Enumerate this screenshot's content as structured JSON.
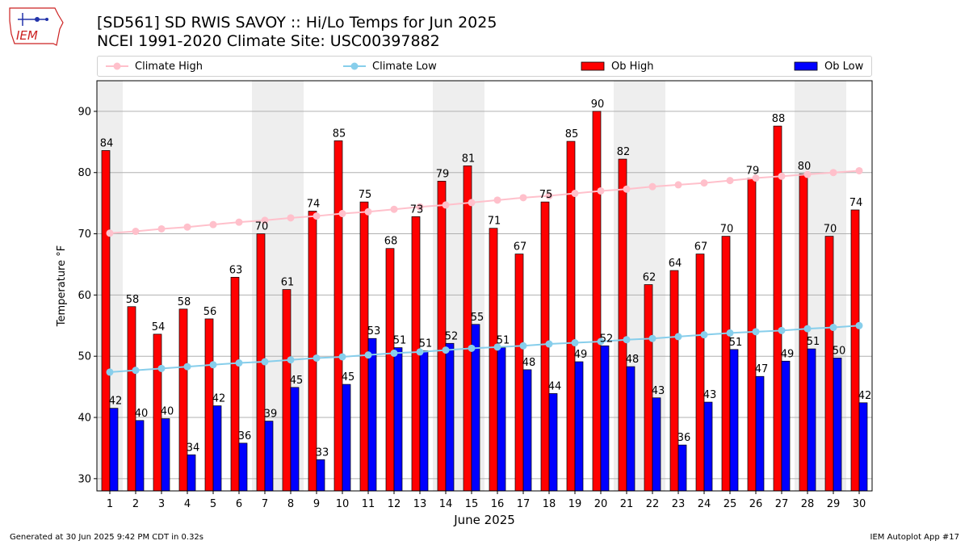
{
  "logo": {
    "text": "IEM",
    "icon": "iowa-state-outline-logo-icon"
  },
  "title": {
    "line1": "[SD561] SD RWIS SAVOY :: Hi/Lo Temps for Jun 2025",
    "line2": "NCEI 1991-2020 Climate Site: USC00397882"
  },
  "legend": {
    "climate_high": "Climate High",
    "climate_low": "Climate Low",
    "ob_high": "Ob High",
    "ob_low": "Ob Low"
  },
  "footer": {
    "left": "Generated at 30 Jun 2025 9:42 PM CDT in 0.32s",
    "right": "IEM Autoplot App #17"
  },
  "chart_data": {
    "type": "bar",
    "xlabel": "June 2025",
    "ylabel": "Temperature °F",
    "ylim": [
      28,
      95
    ],
    "yticks": [
      30,
      40,
      50,
      60,
      70,
      80,
      90
    ],
    "grid": "horizontal",
    "legend_placement": "top",
    "categories": [
      "1",
      "2",
      "3",
      "4",
      "5",
      "6",
      "7",
      "8",
      "9",
      "10",
      "11",
      "12",
      "13",
      "14",
      "15",
      "16",
      "17",
      "18",
      "19",
      "20",
      "21",
      "22",
      "23",
      "24",
      "25",
      "26",
      "27",
      "28",
      "29",
      "30"
    ],
    "weekend_shaded_days": [
      1,
      7,
      8,
      14,
      15,
      21,
      22,
      28,
      29
    ],
    "series": [
      {
        "name": "Ob High",
        "kind": "bar",
        "color": "#ff0000",
        "values": [
          83.6,
          58.1,
          53.6,
          57.7,
          56.1,
          62.9,
          70.0,
          60.9,
          73.7,
          85.2,
          75.2,
          67.6,
          72.8,
          78.6,
          81.1,
          70.9,
          66.7,
          75.2,
          85.1,
          90.0,
          82.2,
          61.7,
          64.0,
          66.7,
          69.6,
          79.1,
          87.6,
          79.8,
          69.6,
          73.9
        ],
        "labels": [
          "84",
          "58",
          "54",
          "58",
          "56",
          "63",
          "70",
          "61",
          "74",
          "85",
          "75",
          "68",
          "73",
          "79",
          "81",
          "71",
          "67",
          "75",
          "85",
          "90",
          "82",
          "62",
          "64",
          "67",
          "70",
          "79",
          "88",
          "80",
          "70",
          "74"
        ]
      },
      {
        "name": "Ob Low",
        "kind": "bar",
        "color": "#0000ff",
        "values": [
          41.5,
          39.5,
          39.8,
          33.9,
          41.9,
          35.8,
          39.4,
          44.9,
          33.1,
          45.4,
          52.9,
          51.4,
          50.9,
          52.1,
          55.2,
          51.4,
          47.8,
          43.9,
          49.1,
          51.7,
          48.3,
          43.2,
          35.5,
          42.5,
          51.1,
          46.7,
          49.2,
          51.2,
          49.7,
          42.4
        ],
        "labels": [
          "42",
          "40",
          "40",
          "34",
          "42",
          "36",
          "39",
          "45",
          "33",
          "45",
          "53",
          "51",
          "51",
          "52",
          "55",
          "51",
          "48",
          "44",
          "49",
          "52",
          "48",
          "43",
          "36",
          "43",
          "51",
          "47",
          "49",
          "51",
          "50",
          "42"
        ]
      },
      {
        "name": "Climate High",
        "kind": "line",
        "color": "#ffc0cb",
        "values": [
          70.1,
          70.4,
          70.8,
          71.1,
          71.5,
          71.9,
          72.2,
          72.6,
          72.9,
          73.3,
          73.6,
          74.0,
          74.4,
          74.7,
          75.1,
          75.5,
          75.9,
          76.2,
          76.6,
          77.0,
          77.3,
          77.7,
          78.0,
          78.3,
          78.7,
          79.1,
          79.4,
          79.7,
          80.0,
          80.3
        ]
      },
      {
        "name": "Climate Low",
        "kind": "line",
        "color": "#87ceeb",
        "values": [
          47.4,
          47.7,
          48.0,
          48.3,
          48.6,
          48.9,
          49.1,
          49.4,
          49.7,
          49.9,
          50.2,
          50.5,
          50.7,
          51.0,
          51.3,
          51.5,
          51.7,
          52.0,
          52.2,
          52.4,
          52.7,
          52.9,
          53.2,
          53.5,
          53.8,
          54.0,
          54.2,
          54.5,
          54.7,
          55.0
        ]
      }
    ]
  }
}
